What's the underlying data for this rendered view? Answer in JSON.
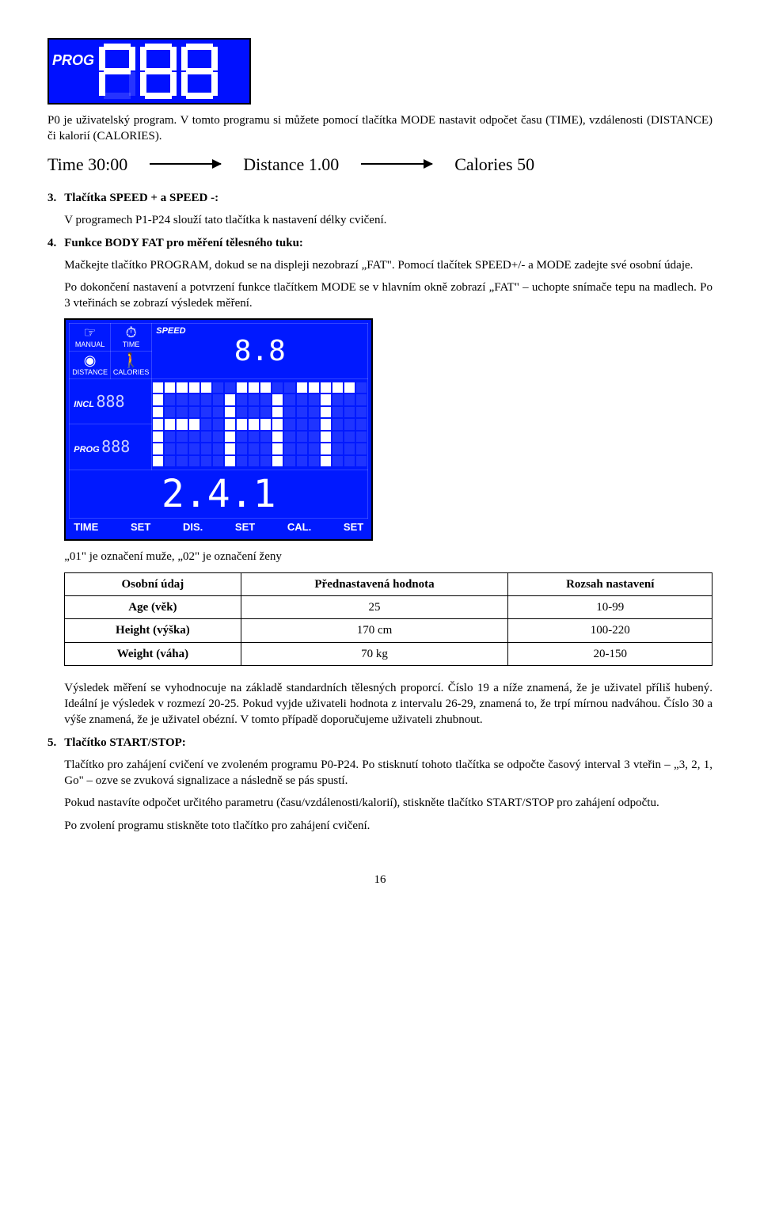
{
  "lcd_small": {
    "prog_label": "PROG",
    "digits": [
      "P",
      "8",
      "8"
    ],
    "border_color": "#000000",
    "bg_color": "#0010ff",
    "fg_color": "#ffffff"
  },
  "intro_para": "P0 je uživatelský program. V tomto programu si můžete pomocí tlačítka MODE nastavit odpočet času (TIME), vzdálenosti (DISTANCE) či kalorií (CALORIES).",
  "modes_strip": {
    "items": [
      "Time 30:00",
      "Distance 1.00",
      "Calories 50"
    ],
    "font_size": 22
  },
  "section3": {
    "num": "3.",
    "title": "Tlačítka SPEED + a SPEED -:",
    "body": "V programech P1-P24 slouží tato tlačítka k nastavení délky cvičení."
  },
  "section4": {
    "num": "4.",
    "title": "Funkce BODY FAT pro měření tělesného tuku:",
    "p1": "Mačkejte tlačítko PROGRAM, dokud se na displeji nezobrazí „FAT\". Pomocí tlačítek SPEED+/- a MODE zadejte své osobní údaje.",
    "p2": "Po dokončení nastavení a potvrzení funkce tlačítkem MODE se v hlavním okně zobrazí „FAT\" – uchopte snímače tepu na madlech. Po 3 vteřinách se zobrazí výsledek měření."
  },
  "lcd_big": {
    "bg_color": "#0019ff",
    "top_cells": [
      {
        "icon": "☞",
        "label": "MANUAL"
      },
      {
        "icon": "⏱",
        "label": "TIME"
      },
      {
        "side": "SPEED",
        "seg": "8.8"
      }
    ],
    "row2_cells": [
      {
        "icon": "◉",
        "label": "DISTANCE"
      },
      {
        "icon": "🚶",
        "label": "CALORIES"
      }
    ],
    "incl_label": "INCL",
    "incl_seg": "888",
    "prog_label": "PROG",
    "prog_seg": "888",
    "matrix_word": "FAT",
    "big_seg": "2.4.1",
    "bottom": [
      "TIME",
      "SET",
      "DIS.",
      "SET",
      "CAL.",
      "SET"
    ]
  },
  "gender_note": "„01\" je označení muže, „02\" je označení ženy",
  "table": {
    "headers": [
      "Osobní údaj",
      "Přednastavená hodnota",
      "Rozsah nastavení"
    ],
    "rows": [
      {
        "label": "Age (věk)",
        "preset": "25",
        "range": "10-99"
      },
      {
        "label": "Height (výška)",
        "preset": "170 cm",
        "range": "100-220"
      },
      {
        "label": "Weight (váha)",
        "preset": "70 kg",
        "range": "20-150"
      }
    ]
  },
  "result_para": "Výsledek měření se vyhodnocuje na základě standardních tělesných proporcí. Číslo 19 a níže znamená, že je uživatel příliš hubený. Ideální je výsledek v rozmezí 20-25. Pokud vyjde uživateli hodnota z intervalu 26-29, znamená to, že trpí mírnou nadváhou. Číslo 30 a výše znamená, že je uživatel obézní. V tomto případě doporučujeme uživateli zhubnout.",
  "section5": {
    "num": "5.",
    "title": "Tlačítko START/STOP:",
    "p1": "Tlačítko pro zahájení cvičení ve zvoleném programu P0-P24. Po stisknutí tohoto tlačítka se odpočte časový interval 3 vteřin – „3, 2, 1, Go\" – ozve se zvuková signalizace a následně se pás spustí.",
    "p2": "Pokud nastavíte odpočet určitého parametru (času/vzdálenosti/kalorií), stiskněte tlačítko START/STOP pro zahájení odpočtu.",
    "p3": "Po zvolení programu stiskněte toto tlačítko pro zahájení cvičení."
  },
  "page_number": "16"
}
